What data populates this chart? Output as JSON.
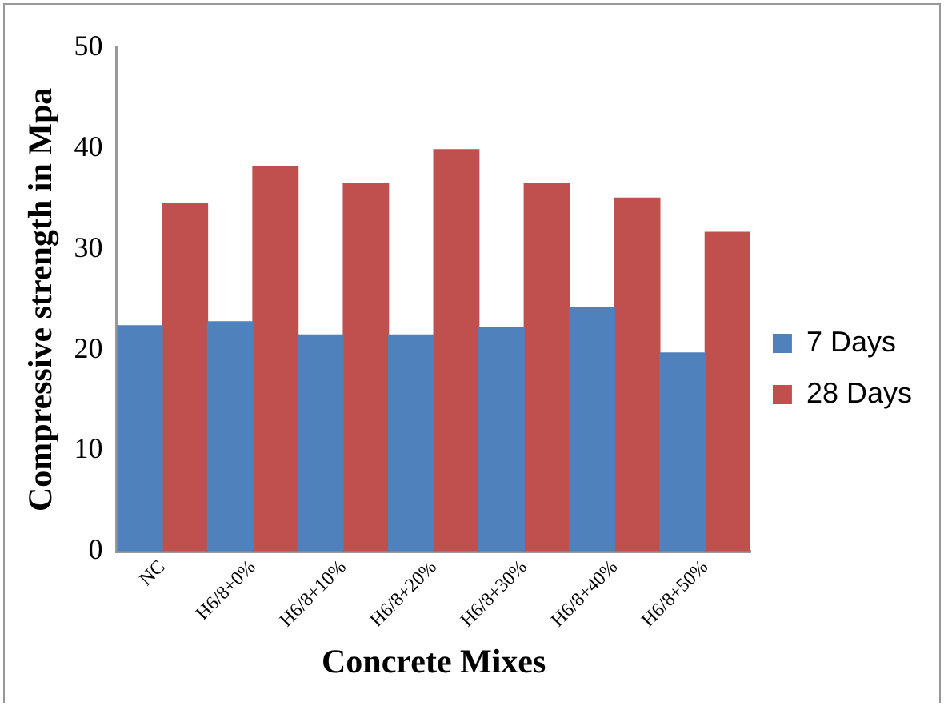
{
  "chart_data": {
    "type": "bar",
    "xlabel": "Concrete Mixes",
    "ylabel": "Compressive strength in Mpa",
    "categories": [
      "NC",
      "H6/8+0%",
      "H6/8+10%",
      "H6/8+20%",
      "H6/8+30%",
      "H6/8+40%",
      "H6/8+50%"
    ],
    "series": [
      {
        "name": "7 Days",
        "color": "#4f81bd",
        "values": [
          22.4,
          22.8,
          21.5,
          21.5,
          22.2,
          24.2,
          19.7
        ]
      },
      {
        "name": "28 Days",
        "color": "#c0504d",
        "values": [
          34.6,
          38.2,
          36.5,
          39.9,
          36.5,
          35.1,
          31.7
        ]
      }
    ],
    "ylim": [
      0,
      50
    ],
    "yticks": [
      0,
      10,
      20,
      30,
      40,
      50
    ],
    "grid": false,
    "legend": "right"
  }
}
